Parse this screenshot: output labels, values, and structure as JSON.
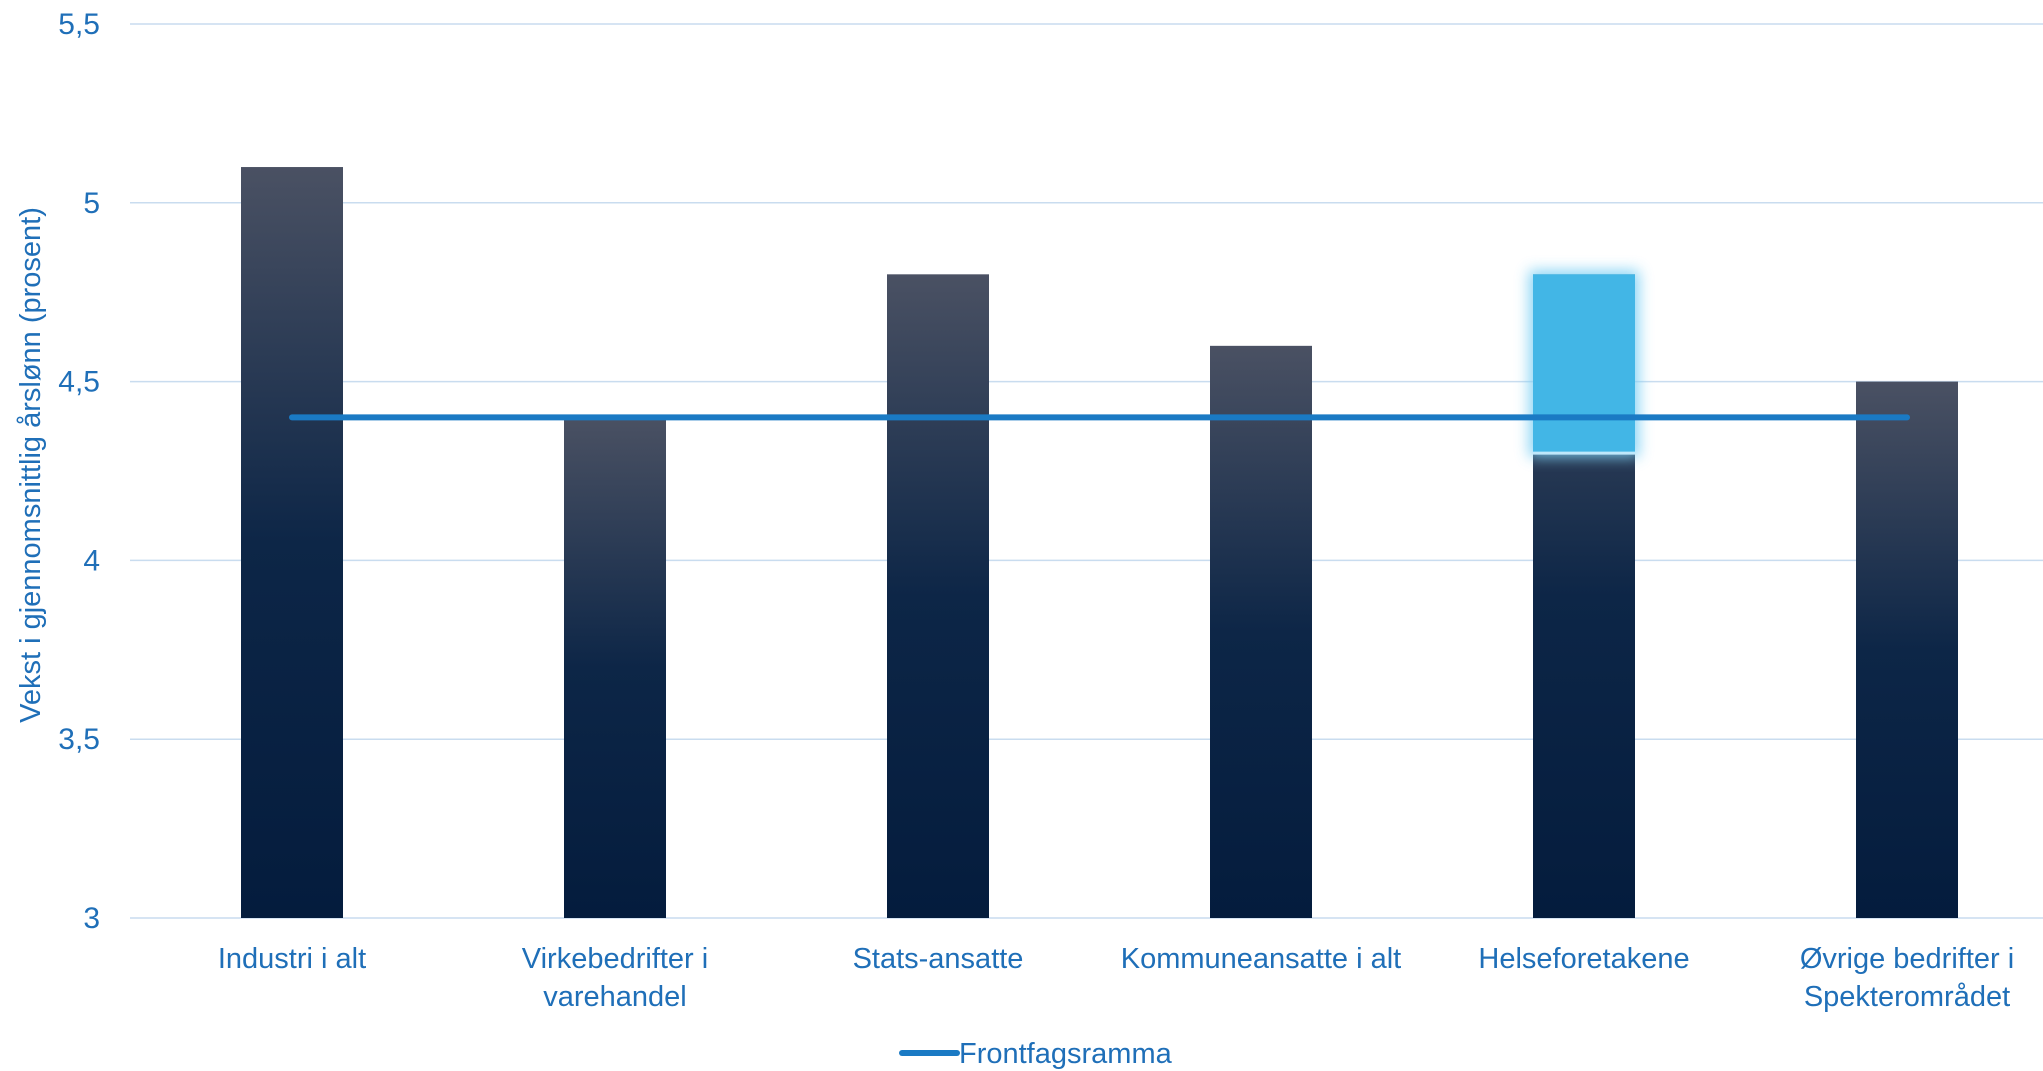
{
  "chart_data": {
    "type": "bar",
    "ylabel": "Vekst i gjennomsnittlig årslønn (prosent)",
    "ylim": [
      3,
      5.5
    ],
    "yticks": [
      "3",
      "3,5",
      "4",
      "4,5",
      "5",
      "5,5"
    ],
    "ytick_values": [
      3,
      3.5,
      4,
      4.5,
      5,
      5.5
    ],
    "grid": true,
    "categories": [
      [
        "Industri i alt"
      ],
      [
        "Virkebedrifter i",
        "varehandel"
      ],
      [
        "Stats-ansatte"
      ],
      [
        "Kommuneansatte i alt"
      ],
      [
        "Helseforetakene"
      ],
      [
        "Øvrige bedrifter i",
        "Spekterområdet"
      ]
    ],
    "series": [
      {
        "type": "bar",
        "values": [
          5.1,
          4.4,
          4.8,
          4.6,
          4.8,
          4.5
        ]
      },
      {
        "type": "line",
        "name": "Frontfagsramma",
        "values": [
          4.4,
          4.4,
          4.4,
          4.4,
          4.4,
          4.4
        ]
      }
    ],
    "highlight": {
      "category_index": 4,
      "from": 4.3,
      "to": 4.8
    },
    "legend": {
      "position": "bottom",
      "entries": [
        "Frontfagsramma"
      ]
    },
    "colors": {
      "bar_top": "#4a5163",
      "bar_bottom": "#041c3d",
      "line": "#1a7ac4",
      "highlight": "#42b6e6",
      "highlight_glow": "#7fd0f4",
      "grid": "#c9dcef",
      "text": "#1f6fb8"
    }
  }
}
